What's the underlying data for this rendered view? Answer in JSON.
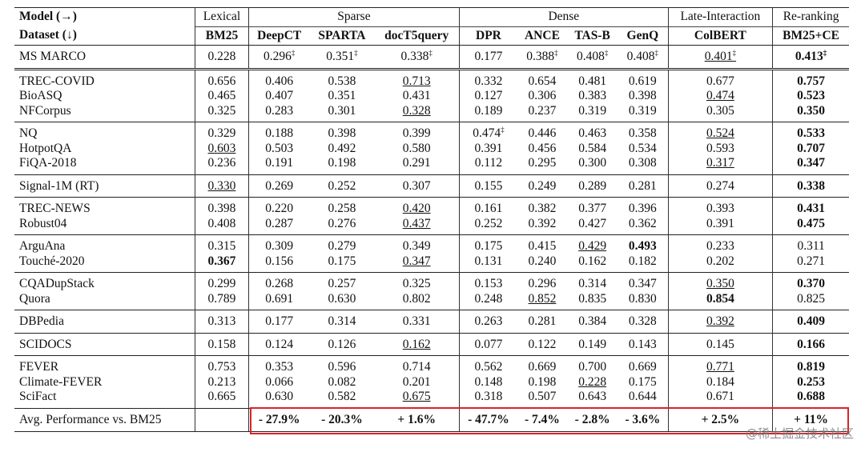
{
  "header": {
    "model_label": "Model (→)",
    "dataset_label": "Dataset (↓)",
    "groups": [
      {
        "name": "Lexical",
        "columns": [
          "BM25"
        ]
      },
      {
        "name": "Sparse",
        "columns": [
          "DeepCT",
          "SPARTA",
          "docT5query"
        ]
      },
      {
        "name": "Dense",
        "columns": [
          "DPR",
          "ANCE",
          "TAS-B",
          "GenQ"
        ]
      },
      {
        "name": "Late-Interaction",
        "columns": [
          "ColBERT"
        ]
      },
      {
        "name": "Re-ranking",
        "columns": [
          "BM25+CE"
        ]
      }
    ]
  },
  "groups": [
    [
      {
        "dataset": "MS MARCO",
        "values": [
          "0.228",
          "0.296‡",
          "0.351‡",
          "0.338‡",
          "0.177",
          "0.388‡",
          "0.408‡",
          "0.408‡",
          "0.401‡",
          "0.413‡"
        ],
        "underline": [
          8
        ],
        "bold": [
          9
        ]
      }
    ],
    [
      {
        "dataset": "TREC-COVID",
        "values": [
          "0.656",
          "0.406",
          "0.538",
          "0.713",
          "0.332",
          "0.654",
          "0.481",
          "0.619",
          "0.677",
          "0.757"
        ],
        "underline": [
          3
        ],
        "bold": [
          9
        ]
      },
      {
        "dataset": "BioASQ",
        "values": [
          "0.465",
          "0.407",
          "0.351",
          "0.431",
          "0.127",
          "0.306",
          "0.383",
          "0.398",
          "0.474",
          "0.523"
        ],
        "underline": [
          8
        ],
        "bold": [
          9
        ]
      },
      {
        "dataset": "NFCorpus",
        "values": [
          "0.325",
          "0.283",
          "0.301",
          "0.328",
          "0.189",
          "0.237",
          "0.319",
          "0.319",
          "0.305",
          "0.350"
        ],
        "underline": [
          3
        ],
        "bold": [
          9
        ]
      }
    ],
    [
      {
        "dataset": "NQ",
        "values": [
          "0.329",
          "0.188",
          "0.398",
          "0.399",
          "0.474‡",
          "0.446",
          "0.463",
          "0.358",
          "0.524",
          "0.533"
        ],
        "underline": [
          8
        ],
        "bold": [
          9
        ]
      },
      {
        "dataset": "HotpotQA",
        "values": [
          "0.603",
          "0.503",
          "0.492",
          "0.580",
          "0.391",
          "0.456",
          "0.584",
          "0.534",
          "0.593",
          "0.707"
        ],
        "underline": [
          0
        ],
        "bold": [
          9
        ]
      },
      {
        "dataset": "FiQA-2018",
        "values": [
          "0.236",
          "0.191",
          "0.198",
          "0.291",
          "0.112",
          "0.295",
          "0.300",
          "0.308",
          "0.317",
          "0.347"
        ],
        "underline": [
          8
        ],
        "bold": [
          9
        ]
      }
    ],
    [
      {
        "dataset": "Signal-1M (RT)",
        "values": [
          "0.330",
          "0.269",
          "0.252",
          "0.307",
          "0.155",
          "0.249",
          "0.289",
          "0.281",
          "0.274",
          "0.338"
        ],
        "underline": [
          0
        ],
        "bold": [
          9
        ]
      }
    ],
    [
      {
        "dataset": "TREC-NEWS",
        "values": [
          "0.398",
          "0.220",
          "0.258",
          "0.420",
          "0.161",
          "0.382",
          "0.377",
          "0.396",
          "0.393",
          "0.431"
        ],
        "underline": [
          3
        ],
        "bold": [
          9
        ]
      },
      {
        "dataset": "Robust04",
        "values": [
          "0.408",
          "0.287",
          "0.276",
          "0.437",
          "0.252",
          "0.392",
          "0.427",
          "0.362",
          "0.391",
          "0.475"
        ],
        "underline": [
          3
        ],
        "bold": [
          9
        ]
      }
    ],
    [
      {
        "dataset": "ArguAna",
        "values": [
          "0.315",
          "0.309",
          "0.279",
          "0.349",
          "0.175",
          "0.415",
          "0.429",
          "0.493",
          "0.233",
          "0.311"
        ],
        "underline": [
          6
        ],
        "bold": [
          7
        ]
      },
      {
        "dataset": "Touché-2020",
        "values": [
          "0.367",
          "0.156",
          "0.175",
          "0.347",
          "0.131",
          "0.240",
          "0.162",
          "0.182",
          "0.202",
          "0.271"
        ],
        "underline": [
          3
        ],
        "bold": [
          0
        ]
      }
    ],
    [
      {
        "dataset": "CQADupStack",
        "values": [
          "0.299",
          "0.268",
          "0.257",
          "0.325",
          "0.153",
          "0.296",
          "0.314",
          "0.347",
          "0.350",
          "0.370"
        ],
        "underline": [
          8
        ],
        "bold": [
          9
        ]
      },
      {
        "dataset": "Quora",
        "values": [
          "0.789",
          "0.691",
          "0.630",
          "0.802",
          "0.248",
          "0.852",
          "0.835",
          "0.830",
          "0.854",
          "0.825"
        ],
        "underline": [
          5
        ],
        "bold": [
          8
        ]
      }
    ],
    [
      {
        "dataset": "DBPedia",
        "values": [
          "0.313",
          "0.177",
          "0.314",
          "0.331",
          "0.263",
          "0.281",
          "0.384",
          "0.328",
          "0.392",
          "0.409"
        ],
        "underline": [
          8
        ],
        "bold": [
          9
        ]
      }
    ],
    [
      {
        "dataset": "SCIDOCS",
        "values": [
          "0.158",
          "0.124",
          "0.126",
          "0.162",
          "0.077",
          "0.122",
          "0.149",
          "0.143",
          "0.145",
          "0.166"
        ],
        "underline": [
          3
        ],
        "bold": [
          9
        ]
      }
    ],
    [
      {
        "dataset": "FEVER",
        "values": [
          "0.753",
          "0.353",
          "0.596",
          "0.714",
          "0.562",
          "0.669",
          "0.700",
          "0.669",
          "0.771",
          "0.819"
        ],
        "underline": [
          8
        ],
        "bold": [
          9
        ]
      },
      {
        "dataset": "Climate-FEVER",
        "values": [
          "0.213",
          "0.066",
          "0.082",
          "0.201",
          "0.148",
          "0.198",
          "0.228",
          "0.175",
          "0.184",
          "0.253"
        ],
        "underline": [
          6
        ],
        "bold": [
          9
        ]
      },
      {
        "dataset": "SciFact",
        "values": [
          "0.665",
          "0.630",
          "0.582",
          "0.675",
          "0.318",
          "0.507",
          "0.643",
          "0.644",
          "0.671",
          "0.688"
        ],
        "underline": [
          3
        ],
        "bold": [
          9
        ]
      }
    ]
  ],
  "average": {
    "label": "Avg. Performance vs. BM25",
    "values": [
      "- 27.9%",
      "- 20.3%",
      "+ 1.6%",
      "- 47.7%",
      "- 7.4%",
      "- 2.8%",
      "- 3.6%",
      "+ 2.5%",
      "+ 11%"
    ]
  },
  "watermark": "@稀土掘金技术社区"
}
